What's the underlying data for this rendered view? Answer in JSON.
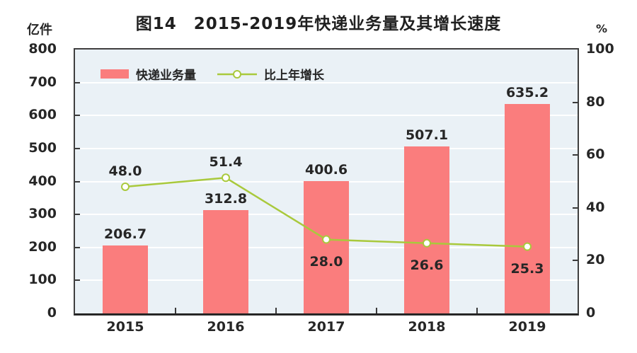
{
  "chart_data": {
    "type": "bar",
    "title": "图14　2015-2019年快递业务量及其增长速度",
    "categories": [
      "2015",
      "2016",
      "2017",
      "2018",
      "2019"
    ],
    "series": [
      {
        "name": "快递业务量",
        "type": "bar",
        "axis": "left",
        "values": [
          206.7,
          312.8,
          400.6,
          507.1,
          635.2
        ]
      },
      {
        "name": "比上年增长",
        "type": "line",
        "axis": "right",
        "values": [
          48.0,
          51.4,
          28.0,
          26.6,
          25.3
        ],
        "label_position": [
          "above",
          "above",
          "below",
          "below",
          "below"
        ]
      }
    ],
    "left_axis": {
      "label": "亿件",
      "min": 0,
      "max": 800,
      "step": 100
    },
    "right_axis": {
      "label": "%",
      "min": 0,
      "max": 100,
      "step": 20
    },
    "grid": true,
    "legend_position": "top-left-inside",
    "colors": {
      "bar": "#fa7d7d",
      "line": "#a9c93c",
      "marker_fill": "#ffffff",
      "plot_background": "#eaf1f6",
      "gridline": "#ffffff",
      "axis": "#3f3f3f",
      "text": "#262626"
    }
  }
}
